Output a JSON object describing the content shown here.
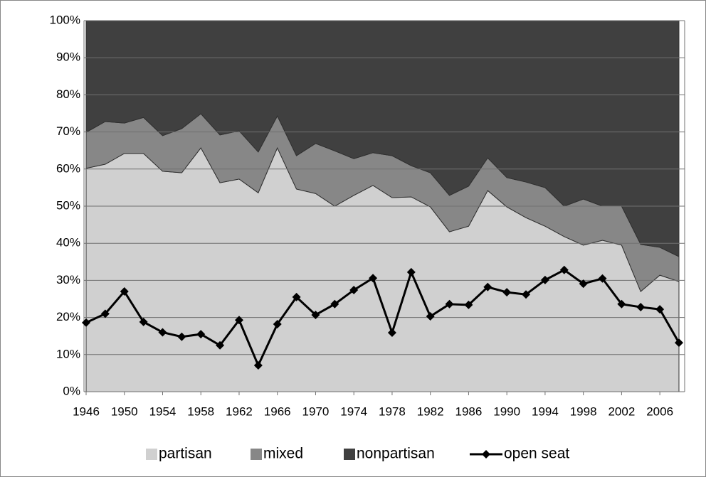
{
  "chart_data": {
    "type": "area",
    "stacked": true,
    "x": [
      1946,
      1948,
      1950,
      1952,
      1954,
      1956,
      1958,
      1960,
      1962,
      1964,
      1966,
      1968,
      1970,
      1972,
      1974,
      1976,
      1978,
      1980,
      1982,
      1984,
      1986,
      1988,
      1990,
      1992,
      1994,
      1996,
      1998,
      2000,
      2002,
      2004,
      2006,
      2008
    ],
    "xlim": [
      1946,
      2008
    ],
    "xticks": [
      1946,
      1950,
      1954,
      1958,
      1962,
      1966,
      1970,
      1974,
      1978,
      1982,
      1986,
      1990,
      1994,
      1998,
      2002,
      2006
    ],
    "ylim": [
      0,
      100
    ],
    "yticks": [
      {
        "value": 0,
        "label": "0%"
      },
      {
        "value": 10,
        "label": "10%"
      },
      {
        "value": 20,
        "label": "20%"
      },
      {
        "value": 30,
        "label": "30%"
      },
      {
        "value": 40,
        "label": "40%"
      },
      {
        "value": 50,
        "label": "50%"
      },
      {
        "value": 60,
        "label": "60%"
      },
      {
        "value": 70,
        "label": "70%"
      },
      {
        "value": 80,
        "label": "80%"
      },
      {
        "value": 90,
        "label": "90%"
      },
      {
        "value": 100,
        "label": "100%"
      }
    ],
    "grid": true,
    "legend": "bottom",
    "series": [
      {
        "name": "partisan",
        "type": "area",
        "color": "#d0d0d0",
        "values": [
          60.2,
          61.3,
          64.2,
          64.2,
          59.4,
          59.0,
          65.7,
          56.3,
          57.3,
          53.6,
          65.7,
          54.6,
          53.4,
          50.0,
          52.9,
          55.6,
          52.3,
          52.5,
          49.8,
          43.1,
          44.6,
          54.2,
          49.8,
          46.9,
          44.6,
          41.8,
          39.5,
          40.8,
          39.5,
          27.0,
          31.4,
          29.7
        ]
      },
      {
        "name": "mixed",
        "type": "area",
        "color": "#878787",
        "values": [
          9.7,
          11.5,
          8.2,
          9.7,
          9.6,
          11.9,
          9.2,
          12.9,
          13.0,
          11.0,
          8.6,
          9.0,
          13.5,
          14.9,
          9.9,
          8.8,
          11.3,
          8.4,
          9.2,
          9.8,
          10.8,
          8.8,
          7.9,
          9.6,
          10.4,
          8.2,
          12.4,
          9.2,
          10.5,
          12.7,
          7.5,
          6.7
        ]
      },
      {
        "name": "nonpartisan",
        "type": "area",
        "color": "#404040",
        "values": [
          30.1,
          27.2,
          27.6,
          26.1,
          31.0,
          29.1,
          25.1,
          30.8,
          29.7,
          35.4,
          25.7,
          36.4,
          33.1,
          35.1,
          37.2,
          35.6,
          36.4,
          39.1,
          41.0,
          47.1,
          44.6,
          37.0,
          42.3,
          43.5,
          45.0,
          50.0,
          48.1,
          50.0,
          50.0,
          60.3,
          61.1,
          63.6
        ]
      },
      {
        "name": "open seat",
        "type": "line",
        "color": "#000000",
        "marker": "diamond",
        "values": [
          18.6,
          21.0,
          27.0,
          18.8,
          16.0,
          14.8,
          15.5,
          12.5,
          19.3,
          7.1,
          18.2,
          25.5,
          20.7,
          23.6,
          27.4,
          30.6,
          15.9,
          32.2,
          20.3,
          23.6,
          23.4,
          28.2,
          26.8,
          26.2,
          30.1,
          32.8,
          29.1,
          30.5,
          23.6,
          22.8,
          22.2,
          13.2
        ]
      }
    ]
  }
}
